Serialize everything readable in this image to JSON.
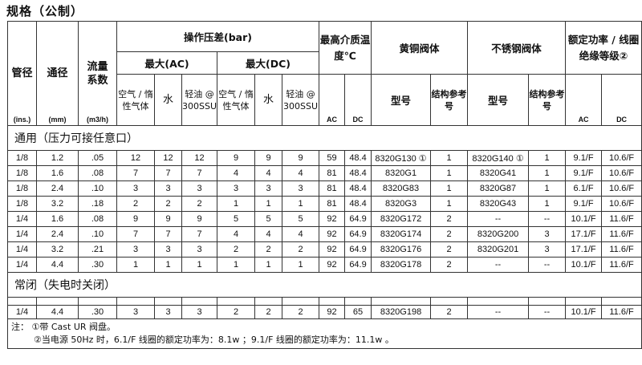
{
  "title": "规格（公制）",
  "header": {
    "pipe_size": "管径",
    "pipe_unit": "(ins.)",
    "orifice": "通径",
    "orifice_unit": "(mm)",
    "flow": "流量系数",
    "flow_unit": "(m3/h)",
    "pressure": "操作压差(bar)",
    "max_ac": "最大(AC)",
    "max_dc": "最大(DC)",
    "sub": [
      "空气 / 惰性气体",
      "水",
      "轻油 @ 300SSU",
      "空气 / 惰性气体",
      "水",
      "轻油 @ 300SSU"
    ],
    "temp": "最高介质温度℃",
    "brass": "黄铜阀体",
    "stainless": "不锈钢阀体",
    "power": "额定功率 / 线圈绝缘等级②",
    "ac": "AC",
    "dc": "DC",
    "model": "型号",
    "ref": "结构参考号"
  },
  "section1": "通用（压力可接任意口）",
  "rows1": [
    [
      "1/8",
      "1.2",
      ".05",
      "12",
      "12",
      "12",
      "9",
      "9",
      "9",
      "59",
      "48.4",
      "8320G130 ①",
      "1",
      "8320G140 ①",
      "1",
      "9.1/F",
      "10.6/F"
    ],
    [
      "1/8",
      "1.6",
      ".08",
      "7",
      "7",
      "7",
      "4",
      "4",
      "4",
      "81",
      "48.4",
      "8320G1",
      "1",
      "8320G41",
      "1",
      "9.1/F",
      "10.6/F"
    ],
    [
      "1/8",
      "2.4",
      ".10",
      "3",
      "3",
      "3",
      "3",
      "3",
      "3",
      "81",
      "48.4",
      "8320G83",
      "1",
      "8320G87",
      "1",
      "6.1/F",
      "10.6/F"
    ],
    [
      "1/8",
      "3.2",
      ".18",
      "2",
      "2",
      "2",
      "1",
      "1",
      "1",
      "81",
      "48.4",
      "8320G3",
      "1",
      "8320G43",
      "1",
      "9.1/F",
      "10.6/F"
    ],
    [
      "1/4",
      "1.6",
      ".08",
      "9",
      "9",
      "9",
      "5",
      "5",
      "5",
      "92",
      "64.9",
      "8320G172",
      "2",
      "--",
      "--",
      "10.1/F",
      "11.6/F"
    ],
    [
      "1/4",
      "2.4",
      ".10",
      "7",
      "7",
      "7",
      "4",
      "4",
      "4",
      "92",
      "64.9",
      "8320G174",
      "2",
      "8320G200",
      "3",
      "17.1/F",
      "11.6/F"
    ],
    [
      "1/4",
      "3.2",
      ".21",
      "3",
      "3",
      "3",
      "2",
      "2",
      "2",
      "92",
      "64.9",
      "8320G176",
      "2",
      "8320G201",
      "3",
      "17.1/F",
      "11.6/F"
    ],
    [
      "1/4",
      "4.4",
      ".30",
      "1",
      "1",
      "1",
      "1",
      "1",
      "1",
      "92",
      "64.9",
      "8320G178",
      "2",
      "--",
      "--",
      "10.1/F",
      "11.6/F"
    ]
  ],
  "section2": "常闭（失电时关闭）",
  "rows2": [
    [
      "1/4",
      "4.4",
      ".30",
      "3",
      "3",
      "3",
      "2",
      "2",
      "2",
      "92",
      "65",
      "8320G198",
      "2",
      "--",
      "--",
      "10.1/F",
      "11.6/F"
    ]
  ],
  "notes": {
    "label": "注：",
    "note1": "①带 Cast UR 阀盘。",
    "note2": "②当电源 50Hz 时，6.1/F  线圈的额定功率为：8.1w ；9.1/F 线圈的额定功率为：11.1w 。"
  }
}
